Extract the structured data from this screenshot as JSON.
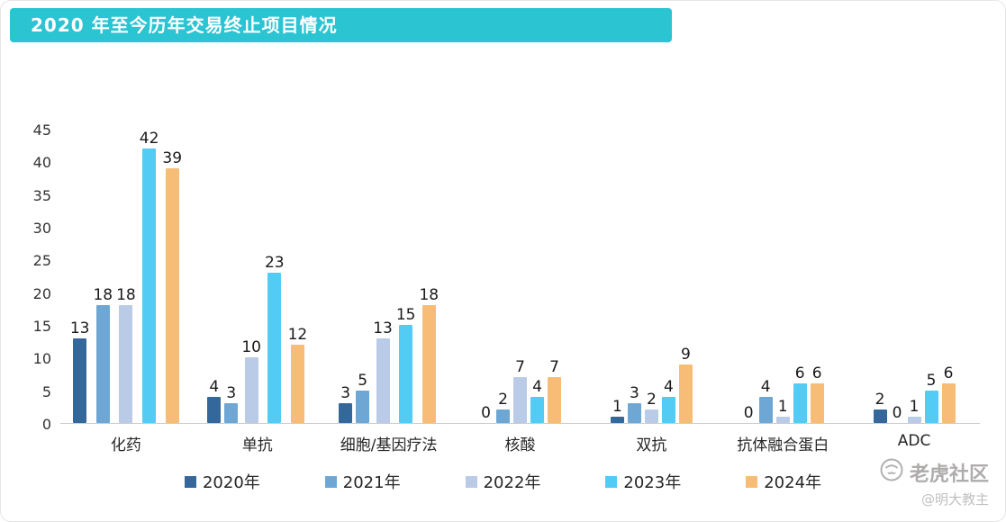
{
  "title": "2020 年至今历年交易终止项目情况",
  "banner_color": "#2ac4d2",
  "watermark": {
    "brand": "老虎社区",
    "author": "@明大教主"
  },
  "chart_data": {
    "type": "bar",
    "title": "2020 年至今历年交易终止项目情况",
    "categories": [
      "化药",
      "单抗",
      "细胞/基因疗法",
      "核酸",
      "双抗",
      "抗体融合蛋白",
      "ADC"
    ],
    "series": [
      {
        "name": "2020年",
        "color": "#35689a",
        "values": [
          13,
          4,
          3,
          0,
          1,
          0,
          2
        ]
      },
      {
        "name": "2021年",
        "color": "#6fa7d4",
        "values": [
          18,
          3,
          5,
          2,
          3,
          4,
          0
        ]
      },
      {
        "name": "2022年",
        "color": "#b9cbe6",
        "values": [
          18,
          10,
          13,
          7,
          2,
          1,
          1
        ]
      },
      {
        "name": "2023年",
        "color": "#52cbf5",
        "values": [
          42,
          23,
          15,
          4,
          4,
          6,
          5
        ]
      },
      {
        "name": "2024年",
        "color": "#f7bd77",
        "values": [
          39,
          12,
          18,
          7,
          9,
          6,
          6
        ]
      }
    ],
    "xlabel": "",
    "ylabel": "",
    "ylim": [
      0,
      45
    ],
    "y_ticks": [
      0,
      5,
      10,
      15,
      20,
      25,
      30,
      35,
      40,
      45
    ],
    "grid": false,
    "legend_position": "bottom"
  }
}
